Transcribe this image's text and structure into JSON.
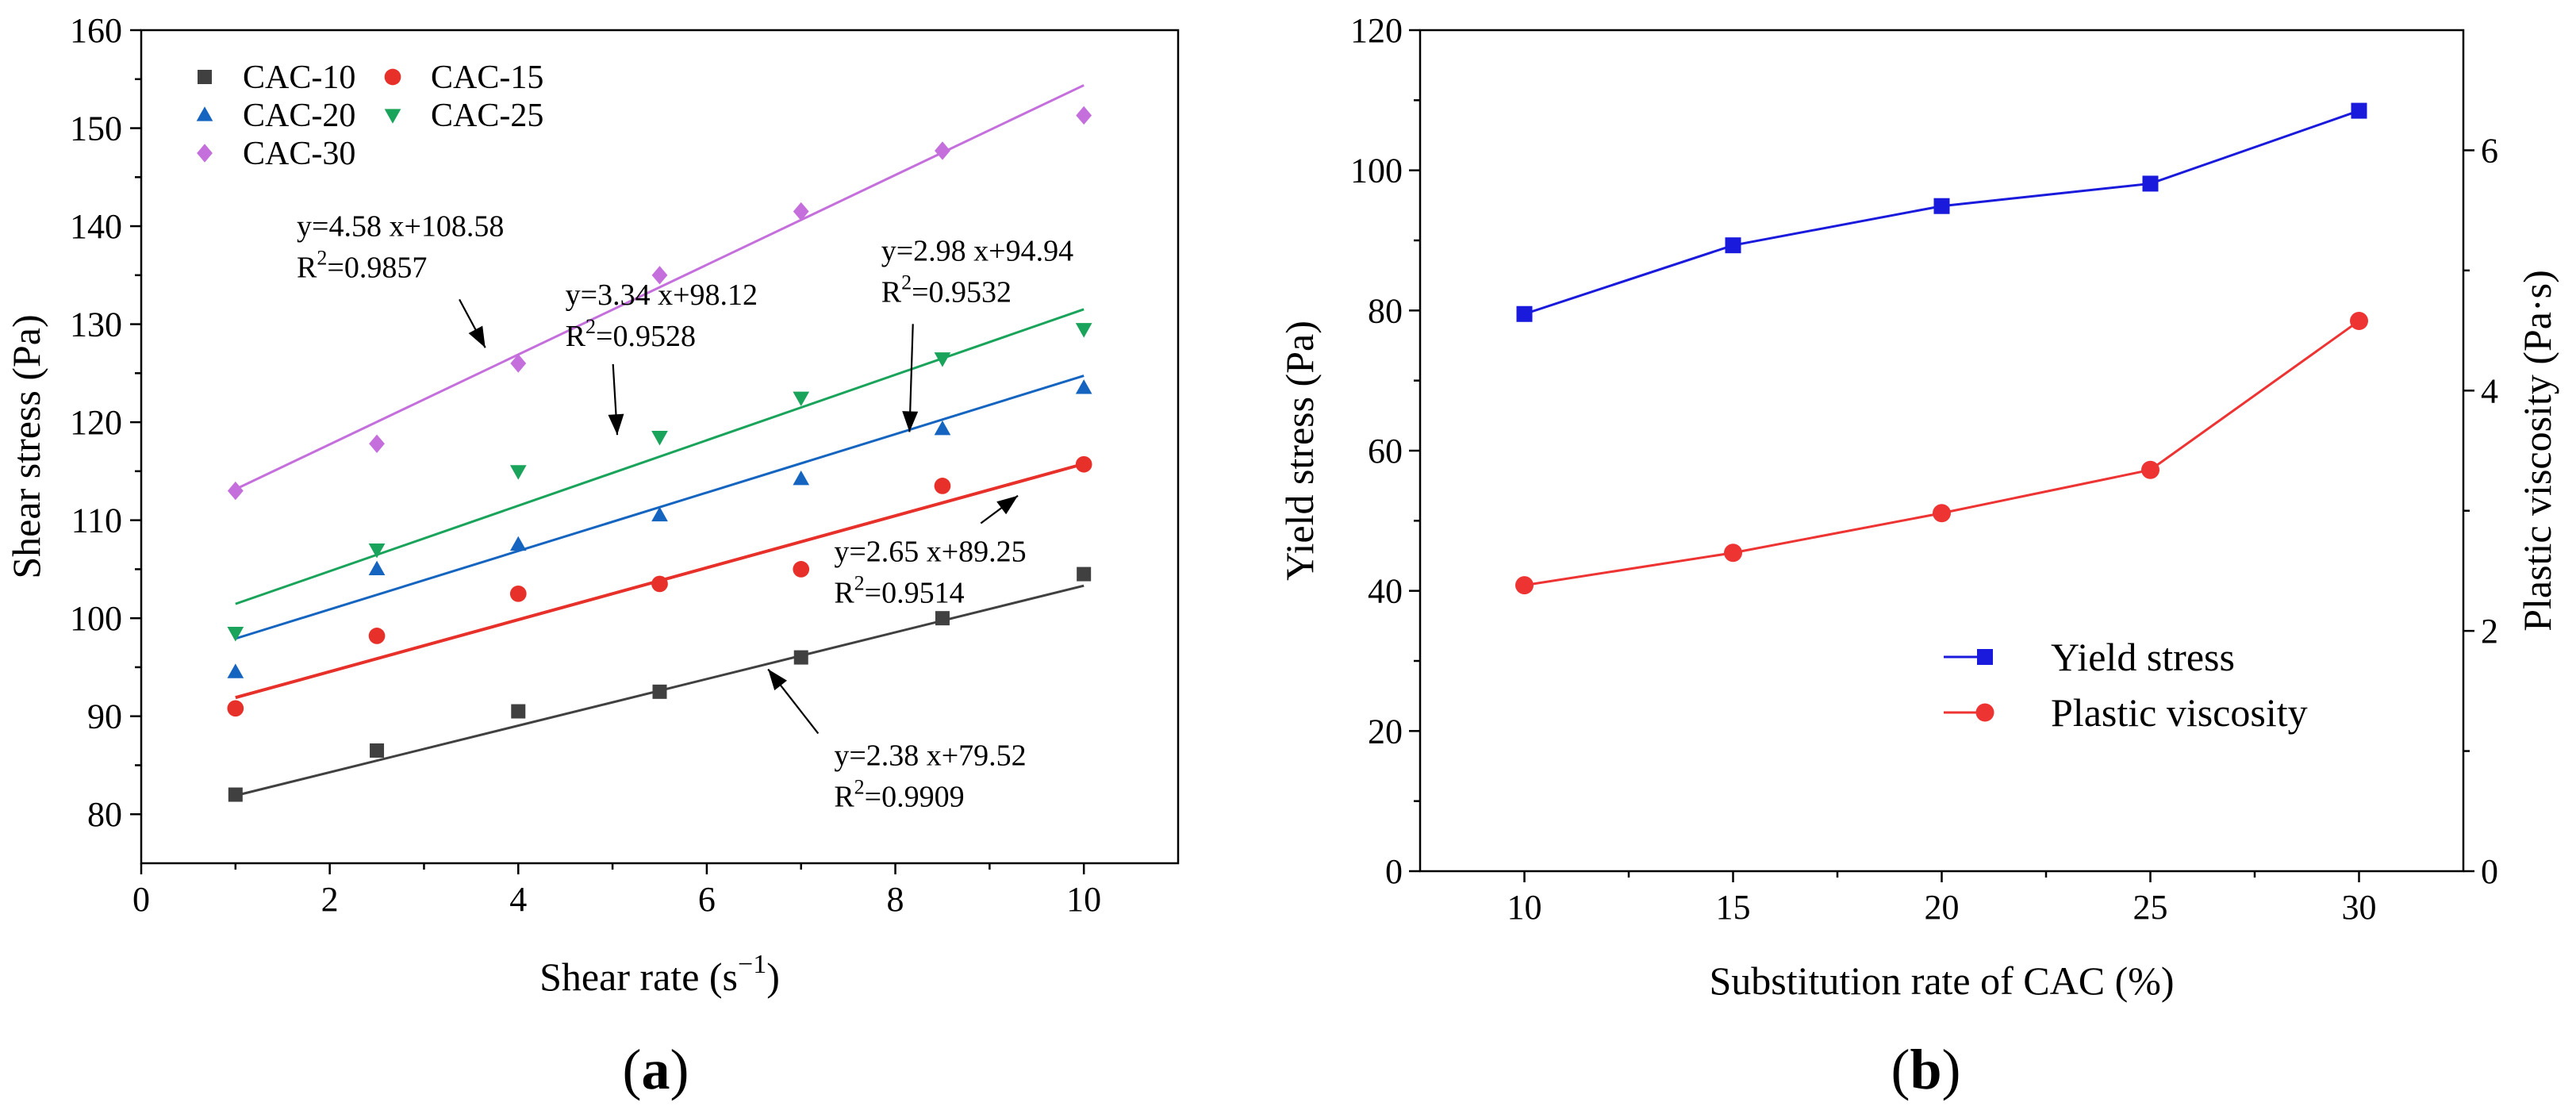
{
  "chart_data": [
    {
      "type": "scatter",
      "panel": "(a)",
      "panel_letter": "a",
      "xlabel": "Shear rate (s",
      "xlabel_sup": "−1",
      "xlabel_close": ")",
      "ylabel": "Shear stress (Pa)",
      "xlim": [
        0,
        11
      ],
      "ylim": [
        75,
        160
      ],
      "xticks": [
        0,
        2,
        4,
        6,
        8,
        10
      ],
      "yticks": [
        80,
        90,
        100,
        110,
        120,
        130,
        140,
        150,
        160
      ],
      "x": [
        1,
        2.5,
        4,
        5.5,
        7,
        8.5,
        10
      ],
      "legend_position": "top-left",
      "series": [
        {
          "name": "CAC-10",
          "color": "#404040",
          "marker": "square",
          "values": [
            82.0,
            86.5,
            90.5,
            92.5,
            96.0,
            100.0,
            104.5
          ],
          "fit": {
            "slope": 2.38,
            "intercept": 79.52
          }
        },
        {
          "name": "CAC-15",
          "color": "#e8302a",
          "marker": "circle",
          "values": [
            90.8,
            98.2,
            102.5,
            103.5,
            105.0,
            113.5,
            115.7
          ],
          "fit": {
            "slope": 2.65,
            "intercept": 89.25
          }
        },
        {
          "name": "CAC-20",
          "color": "#1565c0",
          "marker": "triangle-up",
          "values": [
            94.5,
            105.0,
            107.5,
            110.5,
            114.2,
            119.3,
            123.5
          ],
          "fit": {
            "slope": 2.98,
            "intercept": 94.94
          }
        },
        {
          "name": "CAC-25",
          "color": "#1aa35a",
          "marker": "triangle-down",
          "values": [
            98.5,
            107.0,
            115.0,
            118.5,
            122.5,
            126.5,
            129.5
          ],
          "fit": {
            "slope": 3.34,
            "intercept": 98.12
          }
        },
        {
          "name": "CAC-30",
          "color": "#c46fdc",
          "marker": "diamond",
          "values": [
            113.0,
            117.8,
            126.0,
            135.0,
            141.5,
            147.7,
            151.3
          ],
          "fit": {
            "slope": 4.58,
            "intercept": 108.58
          }
        }
      ],
      "annotations": [
        {
          "eq": "y=4.58 x+108.58",
          "r2_value": "=0.9857",
          "text_x": 1.65,
          "text_y": 139.0,
          "arrow_to": [
            3.65,
            127.6
          ]
        },
        {
          "eq": "y=3.34 x+98.12",
          "r2_value": "=0.9528",
          "text_x": 4.5,
          "text_y": 132.0,
          "arrow_to": [
            5.05,
            118.7
          ]
        },
        {
          "eq": "y=2.98 x+94.94",
          "r2_value": "=0.9532",
          "text_x": 7.85,
          "text_y": 136.5,
          "arrow_to": [
            8.15,
            119.0
          ]
        },
        {
          "eq": "y=2.65 x+89.25",
          "r2_value": "=0.9514",
          "text_x": 7.35,
          "text_y": 105.8,
          "arrow_to": [
            9.3,
            112.5
          ]
        },
        {
          "eq": "y=2.38 x+79.52",
          "r2_value": "=0.9909",
          "text_x": 7.35,
          "text_y": 85.0,
          "arrow_to": [
            6.65,
            94.8
          ]
        }
      ],
      "r2_prefix": "R",
      "r2_sup": "2"
    },
    {
      "type": "line",
      "panel": "(b)",
      "panel_letter": "b",
      "xlabel": "Substitution rate of CAC (%)",
      "ylabel": "Yield stress (Pa)",
      "y2label": "Plastic viscosity (Pa·s)",
      "xlim": [
        7.5,
        32.5
      ],
      "ylim": [
        0,
        120
      ],
      "y2lim": [
        0,
        7
      ],
      "xticks": [
        10,
        15,
        20,
        25,
        30
      ],
      "yticks": [
        0,
        20,
        40,
        60,
        80,
        100,
        120
      ],
      "y2ticks": [
        0,
        2,
        4,
        6
      ],
      "x": [
        10,
        15,
        20,
        25,
        30
      ],
      "legend_position": "center-right",
      "series": [
        {
          "name": "Yield stress",
          "axis": "left",
          "color": "#1a1adc",
          "marker": "square",
          "values": [
            79.5,
            89.3,
            94.9,
            98.1,
            108.5
          ]
        },
        {
          "name": "Plastic viscosity",
          "axis": "right",
          "color": "#ee3333",
          "marker": "circle",
          "values": [
            2.38,
            2.65,
            2.98,
            3.34,
            4.58
          ]
        }
      ]
    }
  ]
}
